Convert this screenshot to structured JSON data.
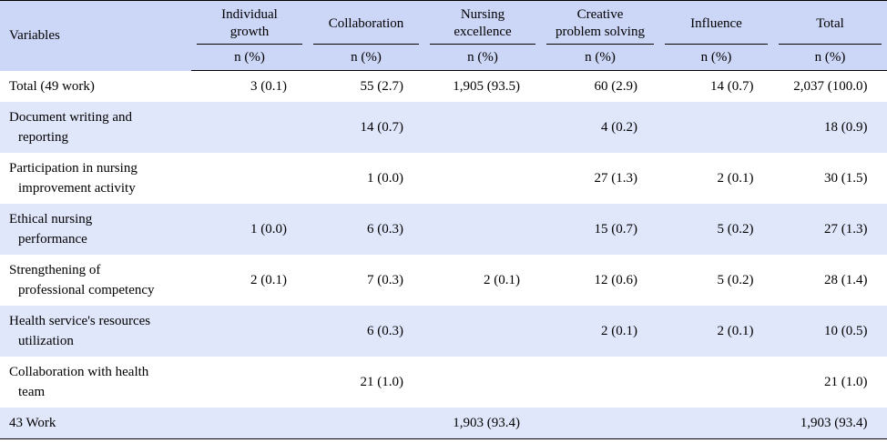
{
  "table": {
    "var_header": "Variables",
    "columns": [
      "Individual growth",
      "Collaboration",
      "Nursing excellence",
      "Creative problem solving",
      "Influence",
      "Total"
    ],
    "column_lines": [
      [
        "Individual",
        "growth"
      ],
      [
        "Collaboration"
      ],
      [
        "Nursing",
        "excellence"
      ],
      [
        "Creative",
        "problem solving"
      ],
      [
        "Influence"
      ],
      [
        "Total"
      ]
    ],
    "sub_header": "n (%)",
    "rows": [
      {
        "label": [
          "Total (49 work)"
        ],
        "cells": [
          "3 (0.1)",
          "55 (2.7)",
          "1,905 (93.5)",
          "60 (2.9)",
          "14 (0.7)",
          "2,037 (100.0)"
        ]
      },
      {
        "label": [
          "Document writing and",
          "reporting"
        ],
        "cells": [
          "",
          "14 (0.7)",
          "",
          "4 (0.2)",
          "",
          "18 (0.9)"
        ]
      },
      {
        "label": [
          "Participation in nursing",
          "improvement activity"
        ],
        "cells": [
          "",
          "1 (0.0)",
          "",
          "27 (1.3)",
          "2 (0.1)",
          "30 (1.5)"
        ]
      },
      {
        "label": [
          "Ethical nursing",
          "performance"
        ],
        "cells": [
          "1 (0.0)",
          "6 (0.3)",
          "",
          "15 (0.7)",
          "5 (0.2)",
          "27 (1.3)"
        ]
      },
      {
        "label": [
          "Strengthening of",
          "professional competency"
        ],
        "cells": [
          "2 (0.1)",
          "7 (0.3)",
          "2 (0.1)",
          "12 (0.6)",
          "5 (0.2)",
          "28 (1.4)"
        ]
      },
      {
        "label": [
          "Health service's resources",
          "utilization"
        ],
        "cells": [
          "",
          "6 (0.3)",
          "",
          "2 (0.1)",
          "2 (0.1)",
          "10 (0.5)"
        ]
      },
      {
        "label": [
          "Collaboration with health",
          "team"
        ],
        "cells": [
          "",
          "21 (1.0)",
          "",
          "",
          "",
          "21 (1.0)"
        ]
      },
      {
        "label": [
          "43 Work"
        ],
        "cells": [
          "",
          "",
          "1,903 (93.4)",
          "",
          "",
          "1,903 (93.4)"
        ]
      }
    ]
  }
}
